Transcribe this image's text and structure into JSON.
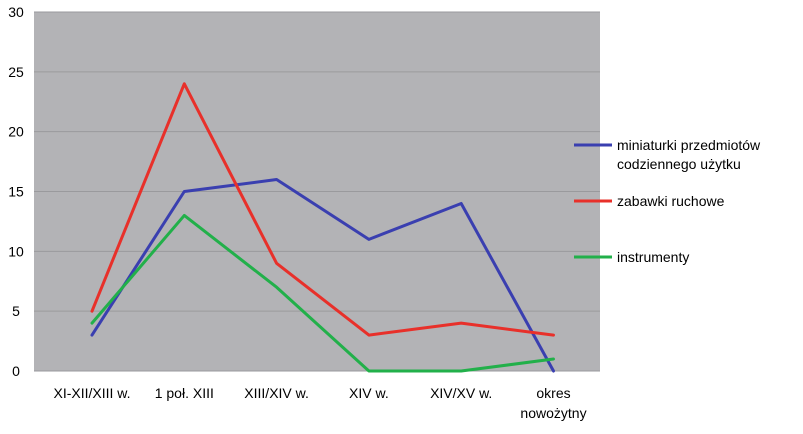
{
  "chart_data": {
    "type": "line",
    "categories": [
      "XI-XII/XIII w.",
      "1 poł. XIII",
      "XIII/XIV w.",
      "XIV w.",
      "XIV/XV w.",
      "okres nowożytny"
    ],
    "category_lines": [
      [
        "XI-XII/XIII w."
      ],
      [
        "1 poł. XIII"
      ],
      [
        "XIII/XIV w."
      ],
      [
        "XIV w."
      ],
      [
        "XIV/XV w."
      ],
      [
        "okres",
        "nowożytny"
      ]
    ],
    "series": [
      {
        "name": "miniaturki przedmiotów codziennego użytku",
        "name_lines": [
          "miniaturki przedmiotów",
          "codziennego użytku"
        ],
        "color": "#3a3fb0",
        "values": [
          3,
          15,
          16,
          11,
          14,
          0
        ]
      },
      {
        "name": "zabawki ruchowe",
        "name_lines": [
          "zabawki ruchowe"
        ],
        "color": "#e8302a",
        "values": [
          5,
          24,
          9,
          3,
          4,
          3
        ]
      },
      {
        "name": "instrumenty",
        "name_lines": [
          "instrumenty"
        ],
        "color": "#22b04a",
        "values": [
          4,
          13,
          7,
          0,
          0,
          1
        ]
      }
    ],
    "y_ticks": [
      "0",
      "5",
      "10",
      "15",
      "20",
      "25",
      "30"
    ],
    "ylim": [
      0,
      30
    ],
    "grid": true,
    "legend_position": "right",
    "plot_background": "#b3b3b6",
    "grid_color": "#9a9a9d"
  }
}
